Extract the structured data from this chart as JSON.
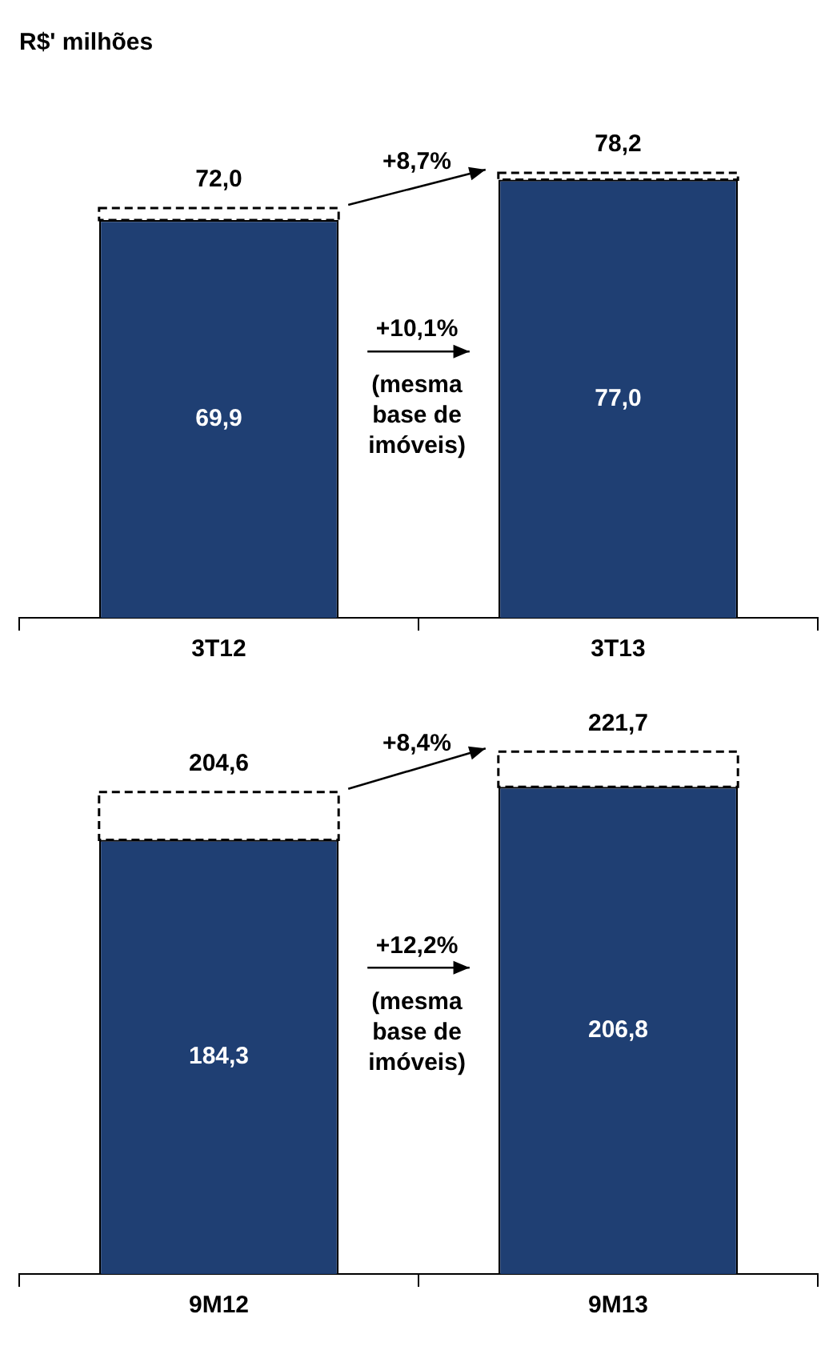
{
  "chart_data": [
    {
      "type": "bar",
      "title": "R$' milhões",
      "categories": [
        "3T12",
        "3T13"
      ],
      "stacked": true,
      "series": [
        {
          "color": "#1f3f73",
          "values": [
            69.9,
            77.0
          ],
          "value_labels": [
            "69,9",
            "77,0"
          ]
        },
        {
          "color": "#ffffff",
          "values": [
            2.1,
            1.2
          ],
          "line_style": "dashed"
        }
      ],
      "totals": [
        "72,0",
        "78,2"
      ],
      "annotations": [
        "+8,7%",
        "+10,1%",
        "(mesma base de imóveis)"
      ]
    },
    {
      "type": "bar",
      "categories": [
        "9M12",
        "9M13"
      ],
      "stacked": true,
      "series": [
        {
          "color": "#1f3f73",
          "values": [
            184.3,
            206.8
          ],
          "value_labels": [
            "184,3",
            "206,8"
          ]
        },
        {
          "color": "#ffffff",
          "values": [
            20.3,
            14.9
          ],
          "line_style": "dashed"
        }
      ],
      "totals": [
        "204,6",
        "221,7"
      ],
      "annotations": [
        "+8,4%",
        "+12,2%",
        "(mesma base de imóveis)"
      ]
    }
  ]
}
